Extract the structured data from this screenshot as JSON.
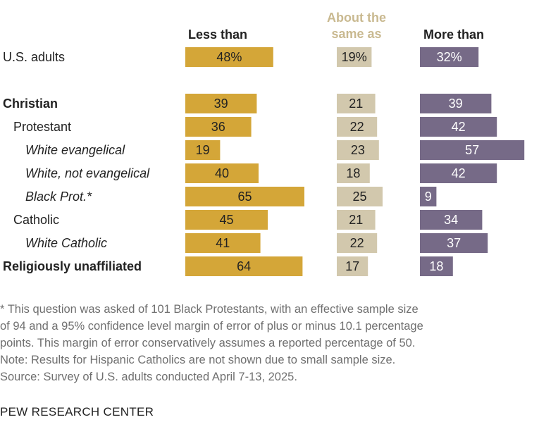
{
  "chart_data": {
    "type": "bar",
    "columns": [
      {
        "key": "less",
        "label_lines": [
          "Less than"
        ],
        "color": "#d4a638"
      },
      {
        "key": "same",
        "label_lines": [
          "About the",
          "same as"
        ],
        "color": "#d2c8ad"
      },
      {
        "key": "more",
        "label_lines": [
          "More than"
        ],
        "color": "#766a87"
      }
    ],
    "rows": [
      {
        "label": "U.S. adults",
        "style": "normal",
        "indent": 0,
        "values": {
          "less": 48,
          "same": 19,
          "more": 32
        },
        "labels": {
          "less": "48%",
          "same": "19%",
          "more": "32%"
        }
      },
      {
        "label": "Christian",
        "style": "bold",
        "indent": 0,
        "values": {
          "less": 39,
          "same": 21,
          "more": 39
        },
        "labels": {
          "less": "39",
          "same": "21",
          "more": "39"
        }
      },
      {
        "label": "Protestant",
        "style": "normal",
        "indent": 1,
        "values": {
          "less": 36,
          "same": 22,
          "more": 42
        },
        "labels": {
          "less": "36",
          "same": "22",
          "more": "42"
        }
      },
      {
        "label": "White evangelical",
        "style": "italic",
        "indent": 2,
        "values": {
          "less": 19,
          "same": 23,
          "more": 57
        },
        "labels": {
          "less": "19",
          "same": "23",
          "more": "57"
        }
      },
      {
        "label": "White, not evangelical",
        "style": "italic",
        "indent": 2,
        "values": {
          "less": 40,
          "same": 18,
          "more": 42
        },
        "labels": {
          "less": "40",
          "same": "18",
          "more": "42"
        }
      },
      {
        "label": "Black Prot.*",
        "style": "italic",
        "indent": 2,
        "values": {
          "less": 65,
          "same": 25,
          "more": 9
        },
        "labels": {
          "less": "65",
          "same": "25",
          "more": "9"
        }
      },
      {
        "label": "Catholic",
        "style": "normal",
        "indent": 1,
        "values": {
          "less": 45,
          "same": 21,
          "more": 34
        },
        "labels": {
          "less": "45",
          "same": "21",
          "more": "34"
        }
      },
      {
        "label": "White Catholic",
        "style": "italic",
        "indent": 2,
        "values": {
          "less": 41,
          "same": 22,
          "more": 37
        },
        "labels": {
          "less": "41",
          "same": "22",
          "more": "37"
        }
      },
      {
        "label": "Religiously unaffiliated",
        "style": "bold",
        "indent": 0,
        "values": {
          "less": 64,
          "same": 17,
          "more": 18
        },
        "labels": {
          "less": "64",
          "same": "17",
          "more": "18"
        }
      }
    ]
  },
  "footnote": {
    "lines": [
      "* This question was asked of 101 Black Protestants, with an effective sample size",
      "of 94 and a 95% confidence level margin of error of plus or minus 10.1 percentage",
      "points. This margin of error conservatively assumes a reported percentage of 50.",
      "Note: Results for Hispanic Catholics are not shown due to small sample size.",
      "Source: Survey of U.S. adults conducted April 7-13, 2025."
    ]
  },
  "source_org": "PEW RESEARCH CENTER"
}
